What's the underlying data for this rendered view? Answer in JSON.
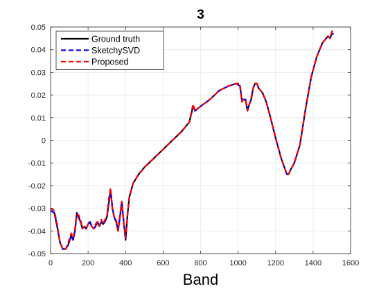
{
  "chart_data": {
    "type": "line",
    "title": "3",
    "xlabel": "Band",
    "ylabel": "",
    "xlim": [
      0,
      1600
    ],
    "ylim": [
      -0.05,
      0.05
    ],
    "xticks": [
      "0",
      "200",
      "400",
      "600",
      "800",
      "1000",
      "1200",
      "1400",
      "1600"
    ],
    "yticks": [
      "-0.05",
      "-0.04",
      "-0.03",
      "-0.02",
      "-0.01",
      "0",
      "0.01",
      "0.02",
      "0.03",
      "0.04",
      "0.05"
    ],
    "grid": true,
    "legend_position": "top-left",
    "series": [
      {
        "name": "Ground truth",
        "color": "#000000",
        "style": "solid",
        "x": [
          0,
          20,
          35,
          50,
          65,
          80,
          95,
          110,
          120,
          130,
          140,
          150,
          160,
          170,
          180,
          190,
          200,
          210,
          220,
          230,
          240,
          250,
          260,
          270,
          280,
          290,
          300,
          310,
          320,
          330,
          340,
          350,
          360,
          370,
          380,
          390,
          400,
          410,
          420,
          440,
          470,
          500,
          550,
          600,
          650,
          700,
          740,
          760,
          770,
          800,
          850,
          900,
          950,
          990,
          1010,
          1020,
          1030,
          1040,
          1050,
          1060,
          1070,
          1080,
          1090,
          1100,
          1110,
          1130,
          1150,
          1170,
          1200,
          1230,
          1260,
          1270,
          1280,
          1300,
          1330,
          1360,
          1390,
          1420,
          1450,
          1480,
          1490,
          1500,
          1510
        ],
        "values": [
          -0.031,
          -0.032,
          -0.038,
          -0.045,
          -0.048,
          -0.048,
          -0.046,
          -0.042,
          -0.044,
          -0.04,
          -0.032,
          -0.034,
          -0.036,
          -0.039,
          -0.038,
          -0.039,
          -0.037,
          -0.036,
          -0.038,
          -0.039,
          -0.038,
          -0.036,
          -0.038,
          -0.036,
          -0.037,
          -0.036,
          -0.034,
          -0.028,
          -0.022,
          -0.03,
          -0.034,
          -0.036,
          -0.04,
          -0.034,
          -0.027,
          -0.036,
          -0.044,
          -0.033,
          -0.025,
          -0.019,
          -0.015,
          -0.012,
          -0.008,
          -0.004,
          0.0,
          0.004,
          0.008,
          0.015,
          0.013,
          0.015,
          0.018,
          0.022,
          0.024,
          0.025,
          0.024,
          0.018,
          0.018,
          0.018,
          0.013,
          0.016,
          0.018,
          0.023,
          0.025,
          0.025,
          0.023,
          0.021,
          0.017,
          0.011,
          0.001,
          -0.008,
          -0.015,
          -0.015,
          -0.013,
          -0.01,
          -0.002,
          0.014,
          0.028,
          0.037,
          0.043,
          0.046,
          0.045,
          0.047,
          0.047
        ]
      },
      {
        "name": "SketchySVD",
        "color": "#0000ff",
        "style": "dashed",
        "x": [
          0,
          20,
          35,
          50,
          65,
          80,
          95,
          110,
          120,
          130,
          140,
          150,
          160,
          170,
          180,
          190,
          200,
          210,
          220,
          230,
          240,
          250,
          260,
          270,
          280,
          290,
          300,
          310,
          320,
          330,
          340,
          350,
          360,
          370,
          380,
          390,
          400,
          410,
          420,
          440,
          470,
          500,
          550,
          600,
          650,
          700,
          740,
          760,
          770,
          800,
          850,
          900,
          950,
          990,
          1010,
          1020,
          1030,
          1040,
          1050,
          1060,
          1070,
          1080,
          1090,
          1100,
          1110,
          1130,
          1150,
          1170,
          1200,
          1230,
          1260,
          1270,
          1280,
          1300,
          1330,
          1360,
          1390,
          1420,
          1450,
          1480,
          1490,
          1500,
          1510
        ],
        "values": [
          -0.031,
          -0.032,
          -0.038,
          -0.045,
          -0.048,
          -0.048,
          -0.046,
          -0.042,
          -0.044,
          -0.04,
          -0.032,
          -0.034,
          -0.036,
          -0.039,
          -0.038,
          -0.039,
          -0.037,
          -0.036,
          -0.038,
          -0.039,
          -0.038,
          -0.036,
          -0.038,
          -0.036,
          -0.037,
          -0.036,
          -0.034,
          -0.028,
          -0.022,
          -0.03,
          -0.034,
          -0.036,
          -0.04,
          -0.034,
          -0.027,
          -0.036,
          -0.044,
          -0.033,
          -0.025,
          -0.019,
          -0.015,
          -0.012,
          -0.008,
          -0.004,
          0.0,
          0.004,
          0.008,
          0.015,
          0.013,
          0.015,
          0.018,
          0.022,
          0.024,
          0.025,
          0.024,
          0.018,
          0.018,
          0.018,
          0.013,
          0.016,
          0.018,
          0.023,
          0.025,
          0.025,
          0.023,
          0.021,
          0.017,
          0.011,
          0.001,
          -0.008,
          -0.015,
          -0.015,
          -0.013,
          -0.01,
          -0.002,
          0.014,
          0.028,
          0.037,
          0.043,
          0.046,
          0.045,
          0.047,
          0.047
        ]
      },
      {
        "name": "Proposed",
        "color": "#ff0000",
        "style": "dashed",
        "x": [
          0,
          20,
          35,
          50,
          65,
          80,
          95,
          110,
          120,
          130,
          140,
          150,
          160,
          170,
          180,
          190,
          200,
          210,
          220,
          230,
          240,
          250,
          260,
          270,
          280,
          290,
          300,
          310,
          320,
          330,
          340,
          350,
          360,
          370,
          380,
          390,
          400,
          410,
          420,
          440,
          470,
          500,
          550,
          600,
          650,
          700,
          740,
          760,
          770,
          800,
          850,
          900,
          950,
          990,
          1010,
          1020,
          1030,
          1040,
          1050,
          1060,
          1070,
          1080,
          1090,
          1100,
          1110,
          1130,
          1150,
          1170,
          1200,
          1230,
          1260,
          1270,
          1280,
          1300,
          1330,
          1360,
          1390,
          1420,
          1450,
          1480,
          1490,
          1500,
          1510
        ],
        "values": [
          -0.03,
          -0.031,
          -0.037,
          -0.045,
          -0.048,
          -0.048,
          -0.045,
          -0.041,
          -0.043,
          -0.039,
          -0.033,
          -0.033,
          -0.035,
          -0.039,
          -0.038,
          -0.039,
          -0.037,
          -0.037,
          -0.038,
          -0.039,
          -0.037,
          -0.036,
          -0.038,
          -0.035,
          -0.037,
          -0.035,
          -0.034,
          -0.026,
          -0.021,
          -0.031,
          -0.034,
          -0.035,
          -0.04,
          -0.033,
          -0.027,
          -0.036,
          -0.043,
          -0.033,
          -0.025,
          -0.019,
          -0.015,
          -0.012,
          -0.008,
          -0.004,
          0.0,
          0.004,
          0.008,
          0.016,
          0.013,
          0.015,
          0.018,
          0.022,
          0.024,
          0.025,
          0.025,
          0.017,
          0.018,
          0.018,
          0.013,
          0.016,
          0.019,
          0.023,
          0.025,
          0.025,
          0.023,
          0.021,
          0.017,
          0.011,
          0.001,
          -0.008,
          -0.015,
          -0.015,
          -0.013,
          -0.01,
          -0.002,
          0.014,
          0.028,
          0.037,
          0.043,
          0.046,
          0.045,
          0.048,
          0.049
        ]
      }
    ]
  }
}
